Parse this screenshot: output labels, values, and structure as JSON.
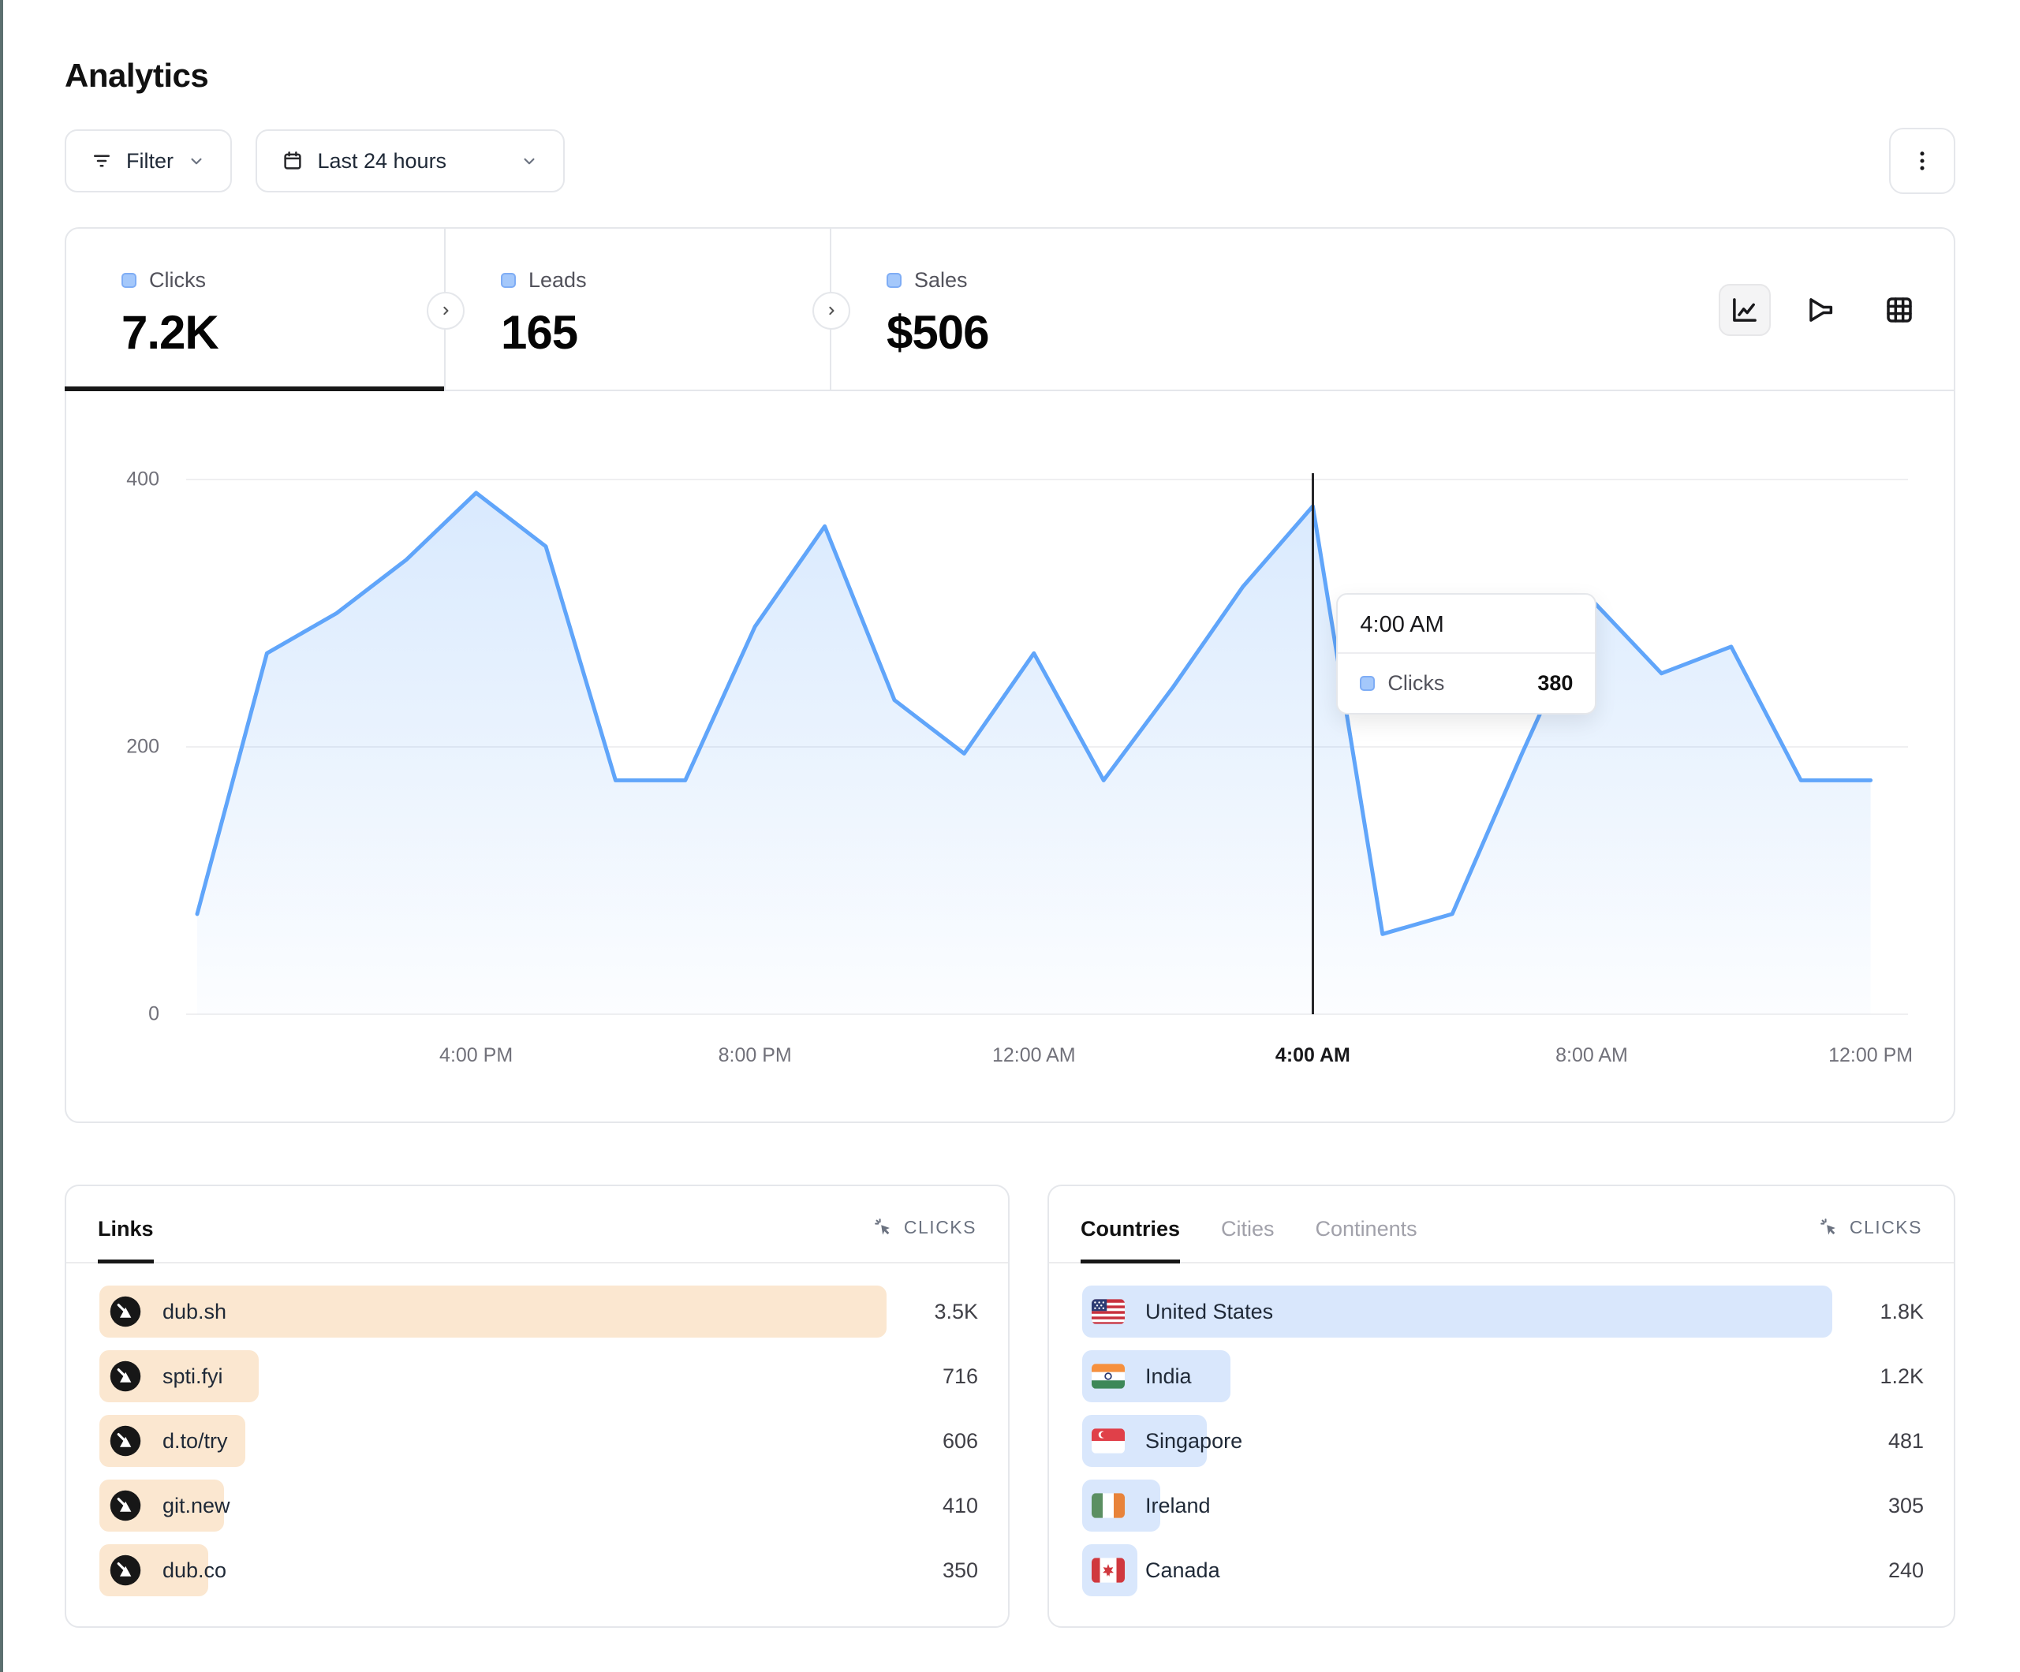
{
  "page": {
    "title": "Analytics"
  },
  "toolbar": {
    "filter": {
      "label": "Filter"
    },
    "date_range": {
      "label": "Last 24 hours"
    }
  },
  "metrics": {
    "items": [
      {
        "label": "Clicks",
        "value": "7.2K"
      },
      {
        "label": "Leads",
        "value": "165"
      },
      {
        "label": "Sales",
        "value": "$506"
      }
    ]
  },
  "chart_data": {
    "type": "area",
    "series_name": "Clicks",
    "x": [
      "12:00 PM",
      "1:00 PM",
      "2:00 PM",
      "3:00 PM",
      "4:00 PM",
      "5:00 PM",
      "6:00 PM",
      "7:00 PM",
      "8:00 PM",
      "9:00 PM",
      "10:00 PM",
      "11:00 PM",
      "12:00 AM",
      "1:00 AM",
      "2:00 AM",
      "3:00 AM",
      "4:00 AM",
      "5:00 AM",
      "6:00 AM",
      "7:00 AM",
      "8:00 AM",
      "9:00 AM",
      "10:00 AM",
      "11:00 AM",
      "12:00 PM"
    ],
    "values": [
      75,
      270,
      300,
      340,
      390,
      350,
      175,
      175,
      290,
      365,
      235,
      195,
      270,
      175,
      245,
      320,
      380,
      60,
      75,
      195,
      310,
      255,
      275,
      175,
      175
    ],
    "ylim": [
      0,
      440
    ],
    "y_ticks": [
      0,
      200,
      400
    ],
    "x_tick_indices": [
      4,
      8,
      12,
      16,
      20,
      24
    ],
    "x_tick_labels": [
      "4:00 PM",
      "8:00 PM",
      "12:00 AM",
      "4:00 AM",
      "8:00 AM",
      "12:00 PM"
    ],
    "grid": "horizontal",
    "legend_position": "none",
    "line_color": "#60a5fa",
    "hover_index": 16
  },
  "tooltip": {
    "title": "4:00 AM",
    "series": "Clicks",
    "value": "380"
  },
  "links_panel": {
    "tab_label": "Links",
    "metric_header": "CLICKS",
    "bar_color": "#fbe7d0",
    "rows": [
      {
        "label": "dub.sh",
        "value": "3.5K",
        "bar_pct": 100
      },
      {
        "label": "spti.fyi",
        "value": "716",
        "bar_pct": 20.2
      },
      {
        "label": "d.to/try",
        "value": "606",
        "bar_pct": 18.5
      },
      {
        "label": "git.new",
        "value": "410",
        "bar_pct": 15.8
      },
      {
        "label": "dub.co",
        "value": "350",
        "bar_pct": 13.8
      }
    ]
  },
  "countries_panel": {
    "tabs": [
      {
        "label": "Countries",
        "active": true
      },
      {
        "label": "Cities",
        "active": false
      },
      {
        "label": "Continents",
        "active": false
      }
    ],
    "metric_header": "CLICKS",
    "bar_color": "#d9e7fc",
    "rows": [
      {
        "label": "United States",
        "flag": "us",
        "value": "1.8K",
        "bar_pct": 100
      },
      {
        "label": "India",
        "flag": "in",
        "value": "1.2K",
        "bar_pct": 19.8
      },
      {
        "label": "Singapore",
        "flag": "sg",
        "value": "481",
        "bar_pct": 16.6
      },
      {
        "label": "Ireland",
        "flag": "ie",
        "value": "305",
        "bar_pct": 10.4
      },
      {
        "label": "Canada",
        "flag": "ca",
        "value": "240",
        "bar_pct": 7.4
      }
    ]
  },
  "colors": {
    "accent_blue": "#60a5fa",
    "legend_square_bg": "#a4c8fb",
    "legend_square_border": "#7fadf5",
    "link_bar": "#fbe7d0",
    "country_bar": "#d9e7fc",
    "border": "#e5e7eb",
    "left_edge_strip": "#5c7070"
  }
}
